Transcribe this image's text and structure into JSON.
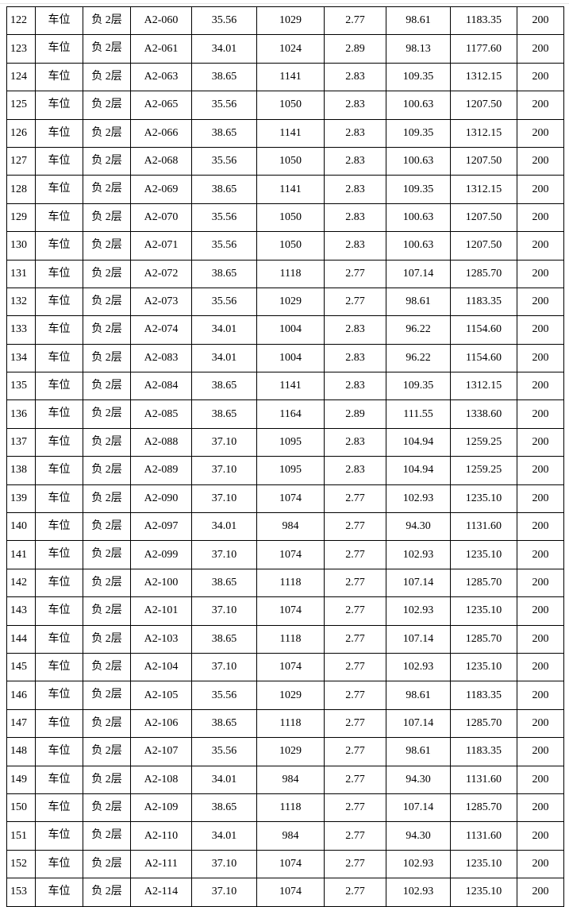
{
  "table": {
    "rows": [
      [
        "122",
        "车位",
        "负 2层",
        "A2-060",
        "35.56",
        "1029",
        "2.77",
        "98.61",
        "1183.35",
        "200"
      ],
      [
        "123",
        "车位",
        "负 2层",
        "A2-061",
        "34.01",
        "1024",
        "2.89",
        "98.13",
        "1177.60",
        "200"
      ],
      [
        "124",
        "车位",
        "负 2层",
        "A2-063",
        "38.65",
        "1141",
        "2.83",
        "109.35",
        "1312.15",
        "200"
      ],
      [
        "125",
        "车位",
        "负 2层",
        "A2-065",
        "35.56",
        "1050",
        "2.83",
        "100.63",
        "1207.50",
        "200"
      ],
      [
        "126",
        "车位",
        "负 2层",
        "A2-066",
        "38.65",
        "1141",
        "2.83",
        "109.35",
        "1312.15",
        "200"
      ],
      [
        "127",
        "车位",
        "负 2层",
        "A2-068",
        "35.56",
        "1050",
        "2.83",
        "100.63",
        "1207.50",
        "200"
      ],
      [
        "128",
        "车位",
        "负 2层",
        "A2-069",
        "38.65",
        "1141",
        "2.83",
        "109.35",
        "1312.15",
        "200"
      ],
      [
        "129",
        "车位",
        "负 2层",
        "A2-070",
        "35.56",
        "1050",
        "2.83",
        "100.63",
        "1207.50",
        "200"
      ],
      [
        "130",
        "车位",
        "负 2层",
        "A2-071",
        "35.56",
        "1050",
        "2.83",
        "100.63",
        "1207.50",
        "200"
      ],
      [
        "131",
        "车位",
        "负 2层",
        "A2-072",
        "38.65",
        "1118",
        "2.77",
        "107.14",
        "1285.70",
        "200"
      ],
      [
        "132",
        "车位",
        "负 2层",
        "A2-073",
        "35.56",
        "1029",
        "2.77",
        "98.61",
        "1183.35",
        "200"
      ],
      [
        "133",
        "车位",
        "负 2层",
        "A2-074",
        "34.01",
        "1004",
        "2.83",
        "96.22",
        "1154.60",
        "200"
      ],
      [
        "134",
        "车位",
        "负 2层",
        "A2-083",
        "34.01",
        "1004",
        "2.83",
        "96.22",
        "1154.60",
        "200"
      ],
      [
        "135",
        "车位",
        "负 2层",
        "A2-084",
        "38.65",
        "1141",
        "2.83",
        "109.35",
        "1312.15",
        "200"
      ],
      [
        "136",
        "车位",
        "负 2层",
        "A2-085",
        "38.65",
        "1164",
        "2.89",
        "111.55",
        "1338.60",
        "200"
      ],
      [
        "137",
        "车位",
        "负 2层",
        "A2-088",
        "37.10",
        "1095",
        "2.83",
        "104.94",
        "1259.25",
        "200"
      ],
      [
        "138",
        "车位",
        "负 2层",
        "A2-089",
        "37.10",
        "1095",
        "2.83",
        "104.94",
        "1259.25",
        "200"
      ],
      [
        "139",
        "车位",
        "负 2层",
        "A2-090",
        "37.10",
        "1074",
        "2.77",
        "102.93",
        "1235.10",
        "200"
      ],
      [
        "140",
        "车位",
        "负 2层",
        "A2-097",
        "34.01",
        "984",
        "2.77",
        "94.30",
        "1131.60",
        "200"
      ],
      [
        "141",
        "车位",
        "负 2层",
        "A2-099",
        "37.10",
        "1074",
        "2.77",
        "102.93",
        "1235.10",
        "200"
      ],
      [
        "142",
        "车位",
        "负 2层",
        "A2-100",
        "38.65",
        "1118",
        "2.77",
        "107.14",
        "1285.70",
        "200"
      ],
      [
        "143",
        "车位",
        "负 2层",
        "A2-101",
        "37.10",
        "1074",
        "2.77",
        "102.93",
        "1235.10",
        "200"
      ],
      [
        "144",
        "车位",
        "负 2层",
        "A2-103",
        "38.65",
        "1118",
        "2.77",
        "107.14",
        "1285.70",
        "200"
      ],
      [
        "145",
        "车位",
        "负 2层",
        "A2-104",
        "37.10",
        "1074",
        "2.77",
        "102.93",
        "1235.10",
        "200"
      ],
      [
        "146",
        "车位",
        "负 2层",
        "A2-105",
        "35.56",
        "1029",
        "2.77",
        "98.61",
        "1183.35",
        "200"
      ],
      [
        "147",
        "车位",
        "负 2层",
        "A2-106",
        "38.65",
        "1118",
        "2.77",
        "107.14",
        "1285.70",
        "200"
      ],
      [
        "148",
        "车位",
        "负 2层",
        "A2-107",
        "35.56",
        "1029",
        "2.77",
        "98.61",
        "1183.35",
        "200"
      ],
      [
        "149",
        "车位",
        "负 2层",
        "A2-108",
        "34.01",
        "984",
        "2.77",
        "94.30",
        "1131.60",
        "200"
      ],
      [
        "150",
        "车位",
        "负 2层",
        "A2-109",
        "38.65",
        "1118",
        "2.77",
        "107.14",
        "1285.70",
        "200"
      ],
      [
        "151",
        "车位",
        "负 2层",
        "A2-110",
        "34.01",
        "984",
        "2.77",
        "94.30",
        "1131.60",
        "200"
      ],
      [
        "152",
        "车位",
        "负 2层",
        "A2-111",
        "37.10",
        "1074",
        "2.77",
        "102.93",
        "1235.10",
        "200"
      ],
      [
        "153",
        "车位",
        "负 2层",
        "A2-114",
        "37.10",
        "1074",
        "2.77",
        "102.93",
        "1235.10",
        "200"
      ]
    ]
  }
}
